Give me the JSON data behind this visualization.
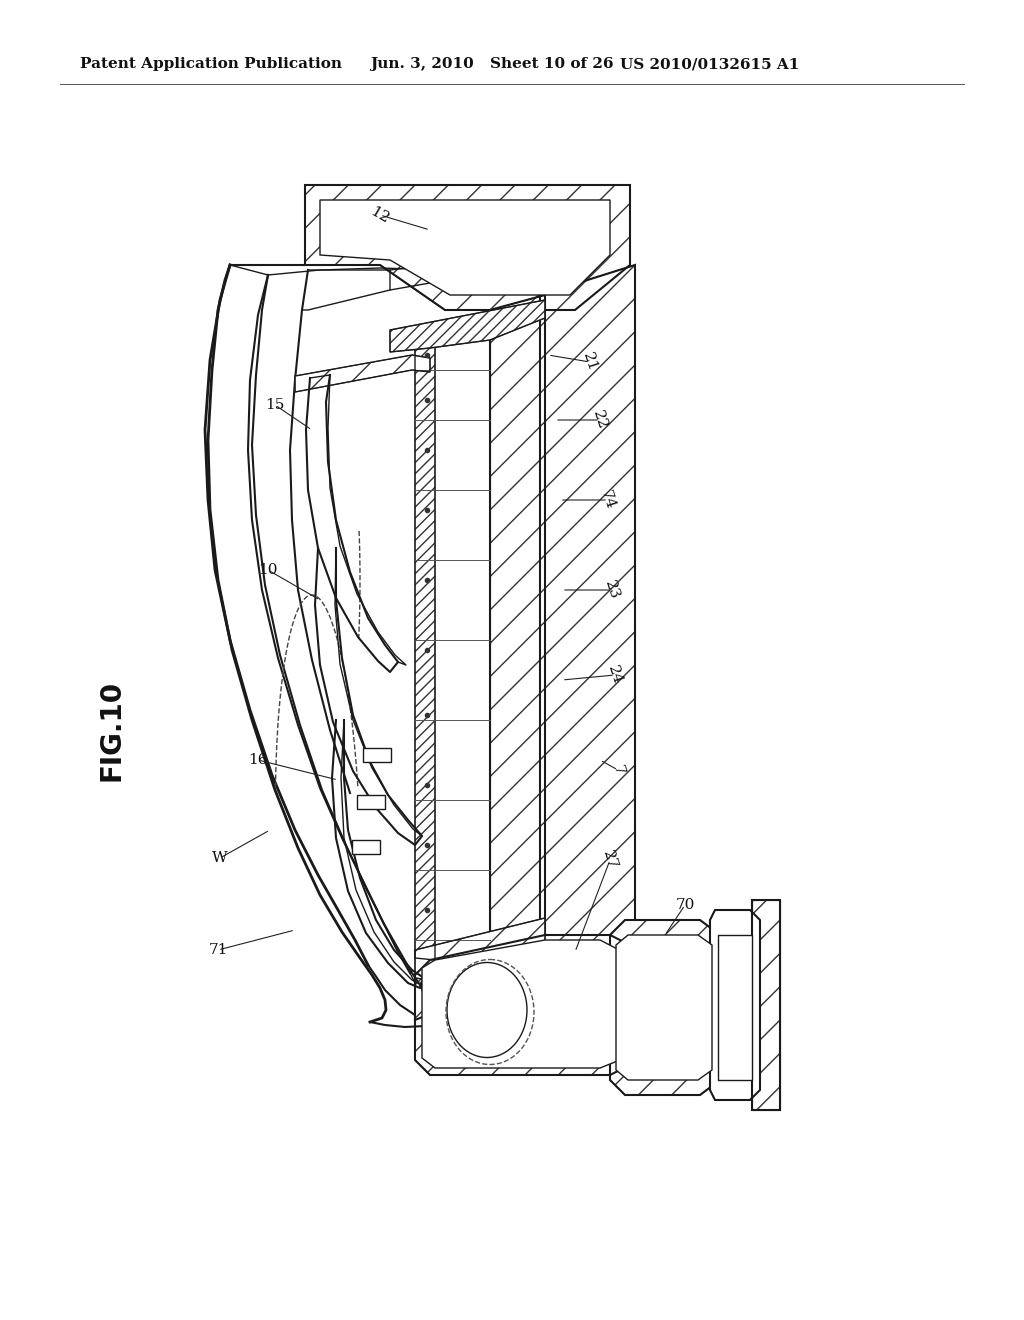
{
  "background_color": "#ffffff",
  "header_text": "Patent Application Publication",
  "header_date": "Jun. 3, 2010",
  "header_sheet": "Sheet 10 of 26",
  "header_patent": "US 2010/0132615 A1",
  "fig_label": "FIG.10",
  "line_color": "#1a1a1a",
  "header_fontsize": 11,
  "label_fontsize": 11,
  "fig_label_fontsize": 20
}
